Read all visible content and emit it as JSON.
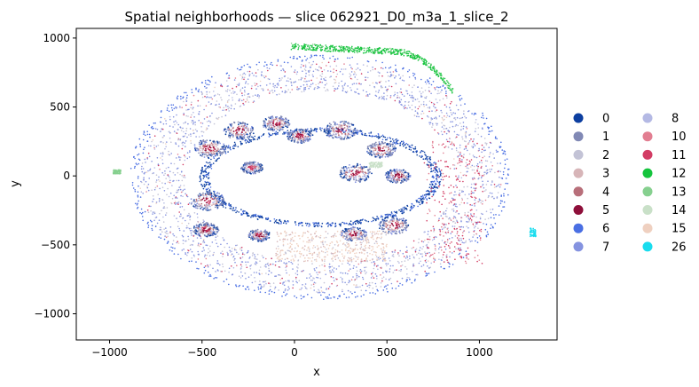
{
  "chart_data": {
    "type": "scatter",
    "title": "Spatial neighborhoods — slice 062921_D0_m3a_1_slice_2",
    "xlabel": "x",
    "ylabel": "y",
    "xlim": [
      -1180,
      1420
    ],
    "ylim": [
      -1190,
      1070
    ],
    "x_ticks": [
      -1000,
      -500,
      0,
      500,
      1000
    ],
    "y_ticks": [
      -1000,
      -500,
      0,
      500,
      1000
    ],
    "x_tick_labels": [
      "−1000",
      "−500",
      "0",
      "500",
      "1000"
    ],
    "y_tick_labels": [
      "−1000",
      "−500",
      "0",
      "500",
      "1000"
    ],
    "grid": false,
    "legend_position": "right",
    "legend_columns": 2,
    "series": [
      {
        "name": "0",
        "color": "#0d3fa0"
      },
      {
        "name": "1",
        "color": "#8189b5"
      },
      {
        "name": "2",
        "color": "#c3c3d6"
      },
      {
        "name": "3",
        "color": "#d7b5b8"
      },
      {
        "name": "4",
        "color": "#b86f7a"
      },
      {
        "name": "5",
        "color": "#8e0f3a"
      },
      {
        "name": "6",
        "color": "#4a6fe3"
      },
      {
        "name": "7",
        "color": "#8593e0"
      },
      {
        "name": "8",
        "color": "#b4b9e4"
      },
      {
        "name": "10",
        "color": "#e27e91"
      },
      {
        "name": "11",
        "color": "#d23c64"
      },
      {
        "name": "12",
        "color": "#15c43d"
      },
      {
        "name": "13",
        "color": "#86d08f"
      },
      {
        "name": "14",
        "color": "#c9e0c8"
      },
      {
        "name": "15",
        "color": "#efd0c0"
      },
      {
        "name": "26",
        "color": "#19dcee"
      }
    ]
  }
}
